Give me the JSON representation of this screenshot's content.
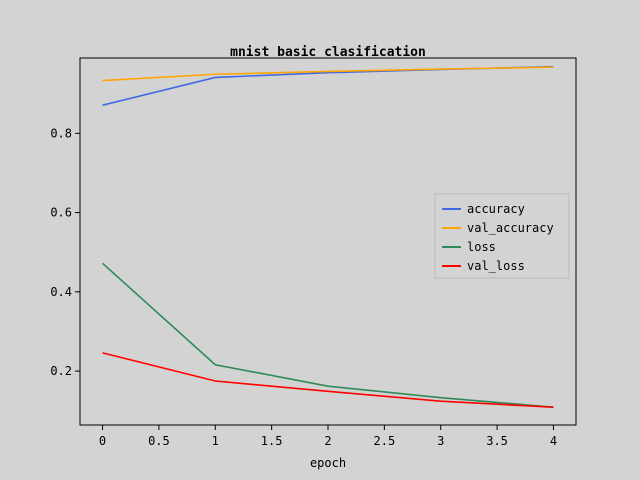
{
  "chart_data": {
    "type": "line",
    "title": "mnist basic clasification",
    "xlabel": "epoch",
    "ylabel": "",
    "x": [
      0,
      1,
      2,
      3,
      4
    ],
    "xticks": [
      "0",
      "0.5",
      "1",
      "1.5",
      "2",
      "2.5",
      "3",
      "3.5",
      "4"
    ],
    "yticks": [
      "0.2",
      "0.4",
      "0.6",
      "0.8"
    ],
    "xlim": [
      -0.2,
      4.2
    ],
    "ylim": [
      0.064,
      0.99
    ],
    "grid": false,
    "legend_position": "center-right",
    "series": [
      {
        "name": "accuracy",
        "color": "#4169e1",
        "values": [
          0.871,
          0.941,
          0.953,
          0.961,
          0.968
        ]
      },
      {
        "name": "val_accuracy",
        "color": "#ffa500",
        "values": [
          0.933,
          0.949,
          0.956,
          0.962,
          0.967
        ]
      },
      {
        "name": "loss",
        "color": "#2e8b57",
        "values": [
          0.472,
          0.216,
          0.162,
          0.133,
          0.109
        ]
      },
      {
        "name": "val_loss",
        "color": "#ff0000",
        "values": [
          0.246,
          0.175,
          0.149,
          0.124,
          0.109
        ]
      }
    ]
  }
}
